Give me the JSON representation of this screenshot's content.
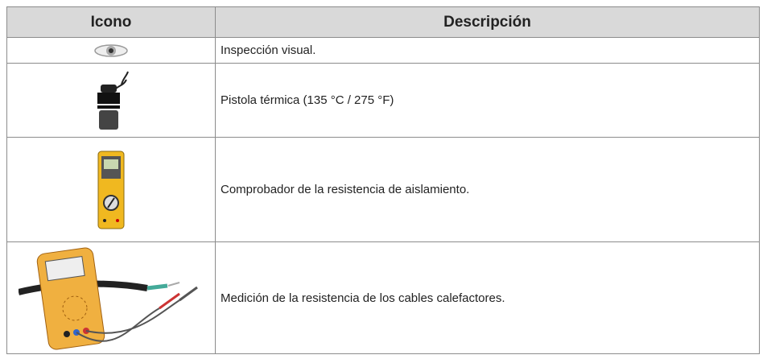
{
  "table": {
    "headers": [
      "Icono",
      "Descripción"
    ],
    "rows": [
      "Inspección visual.",
      "Pistola térmica (135 °C / 275 °F)",
      "Comprobador de la resistencia de aislamiento.",
      "Medición de la resistencia de los cables calefactores."
    ]
  }
}
